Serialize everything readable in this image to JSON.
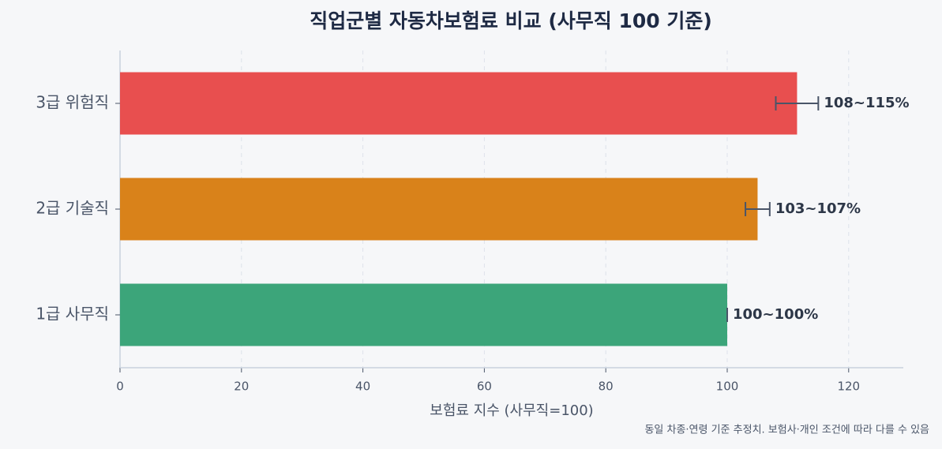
{
  "chart_data": {
    "type": "bar",
    "orientation": "horizontal",
    "title": "직업군별 자동차보험료 비교 (사무직 100 기준)",
    "x_label": "보험료 지수 (사무직=100)",
    "footnote": "동일 차종·연령 기준 추정치. 보험사·개인 조건에 따라 다를 수 있음",
    "categories": [
      "1급 사무직",
      "2급 기술직",
      "3급 위험직"
    ],
    "values": [
      100,
      105,
      111.5
    ],
    "colors": [
      "#3ca57a",
      "#d9821a",
      "#e84f4f"
    ],
    "range_low": [
      100,
      103,
      108
    ],
    "range_high": [
      100,
      107,
      115
    ],
    "range_labels": [
      "100~100%",
      "103~107%",
      "108~115%"
    ],
    "xlim": [
      0,
      129
    ],
    "xticks": [
      0,
      20,
      40,
      60,
      80,
      100,
      120
    ],
    "grid": true
  }
}
